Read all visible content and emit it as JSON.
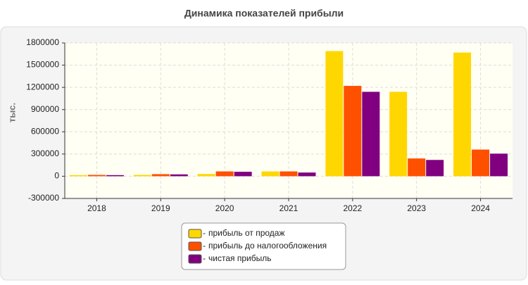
{
  "chart_data": {
    "type": "bar",
    "title": "Динамика показателей прибыли",
    "y_label": "тыс.",
    "categories": [
      "2018",
      "2019",
      "2020",
      "2021",
      "2022",
      "2023",
      "2024"
    ],
    "series": [
      {
        "name": "прибыль от продаж",
        "color": "#ffd700",
        "values": [
          15000,
          18000,
          30000,
          65000,
          1690000,
          1140000,
          1670000
        ]
      },
      {
        "name": "прибыль до налогообложения",
        "color": "#ff5000",
        "values": [
          18000,
          28000,
          65000,
          65000,
          1220000,
          240000,
          360000
        ]
      },
      {
        "name": "чистая прибыль",
        "color": "#800080",
        "values": [
          15000,
          25000,
          60000,
          50000,
          1140000,
          220000,
          305000
        ]
      }
    ],
    "ylim": [
      -300000,
      1800000
    ],
    "yticks": [
      -300000,
      0,
      300000,
      600000,
      900000,
      1200000,
      1500000,
      1800000
    ],
    "grid": true
  }
}
